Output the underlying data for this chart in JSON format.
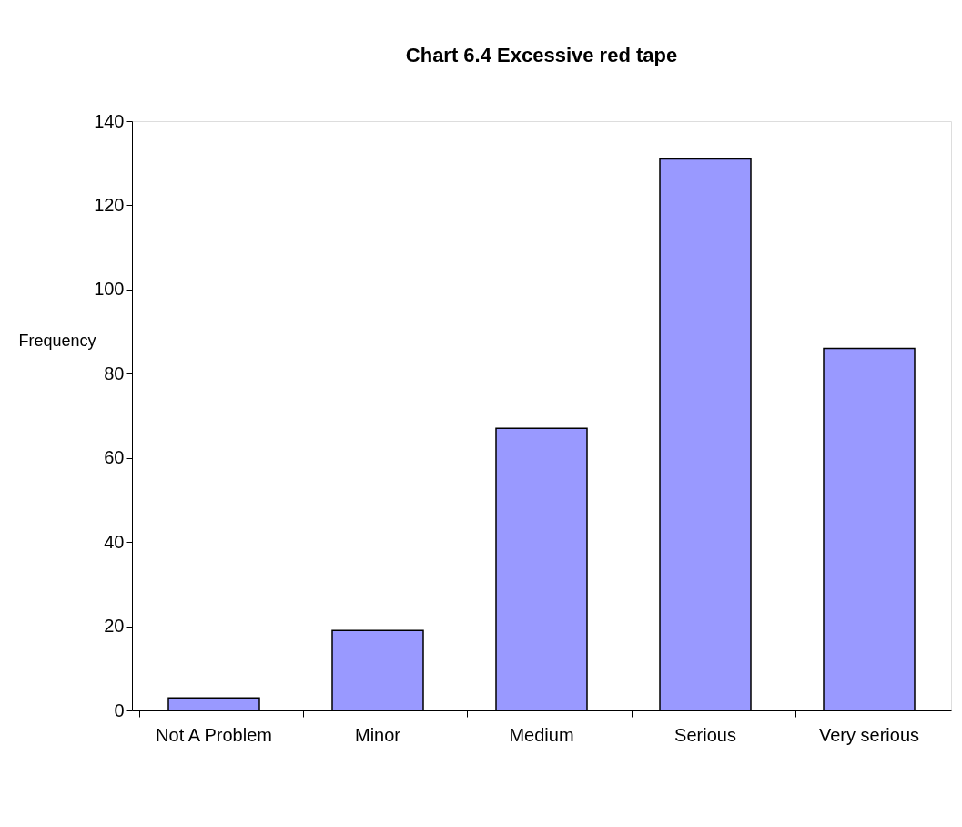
{
  "chart_data": {
    "type": "bar",
    "title": "Chart 6.4 Excessive red tape",
    "ylabel": "Frequency",
    "categories": [
      "Not A Problem",
      "Minor",
      "Medium",
      "Serious",
      "Very serious"
    ],
    "values": [
      3,
      19,
      67,
      131,
      86
    ],
    "color": "#9999ff",
    "ylim": [
      0,
      140
    ],
    "yticks": [
      0,
      20,
      40,
      60,
      80,
      100,
      120,
      140
    ],
    "grid": false
  }
}
